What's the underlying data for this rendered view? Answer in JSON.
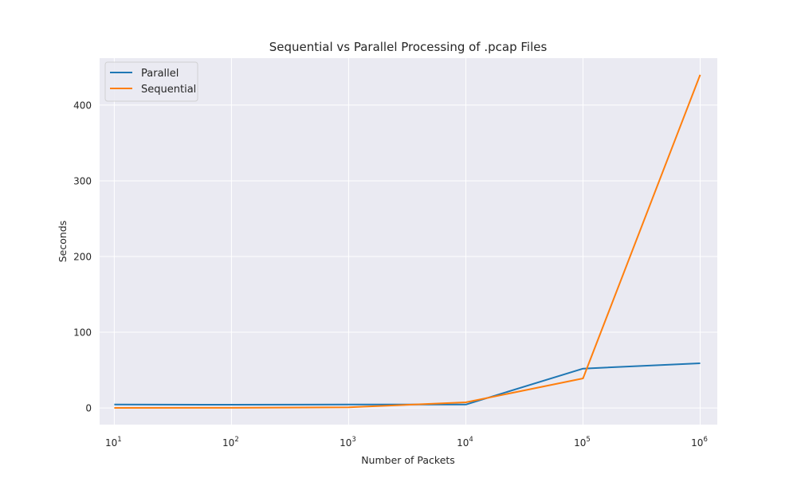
{
  "chart_data": {
    "type": "line",
    "title": "Sequential vs Parallel Processing of .pcap Files",
    "xlabel": "Number of Packets",
    "ylabel": "Seconds",
    "x_scale": "log",
    "x": [
      10,
      100,
      1000,
      10000,
      100000,
      1000000
    ],
    "x_tick_labels": [
      {
        "base": "10",
        "exp": "1"
      },
      {
        "base": "10",
        "exp": "2"
      },
      {
        "base": "10",
        "exp": "3"
      },
      {
        "base": "10",
        "exp": "4"
      },
      {
        "base": "10",
        "exp": "5"
      },
      {
        "base": "10",
        "exp": "6"
      }
    ],
    "y_ticks": [
      0,
      100,
      200,
      300,
      400
    ],
    "y_tick_labels": [
      "0",
      "100",
      "200",
      "300",
      "400"
    ],
    "xlim": [
      7.5,
      1400000
    ],
    "ylim": [
      -22,
      462
    ],
    "grid": true,
    "legend_position": "top-left",
    "series": [
      {
        "name": "Parallel",
        "color": "#1f77b4",
        "values": [
          4.5,
          4.3,
          4.5,
          4.5,
          52,
          59
        ]
      },
      {
        "name": "Sequential",
        "color": "#ff7f0e",
        "values": [
          0.1,
          0.2,
          0.8,
          7.5,
          39,
          440
        ]
      }
    ]
  }
}
